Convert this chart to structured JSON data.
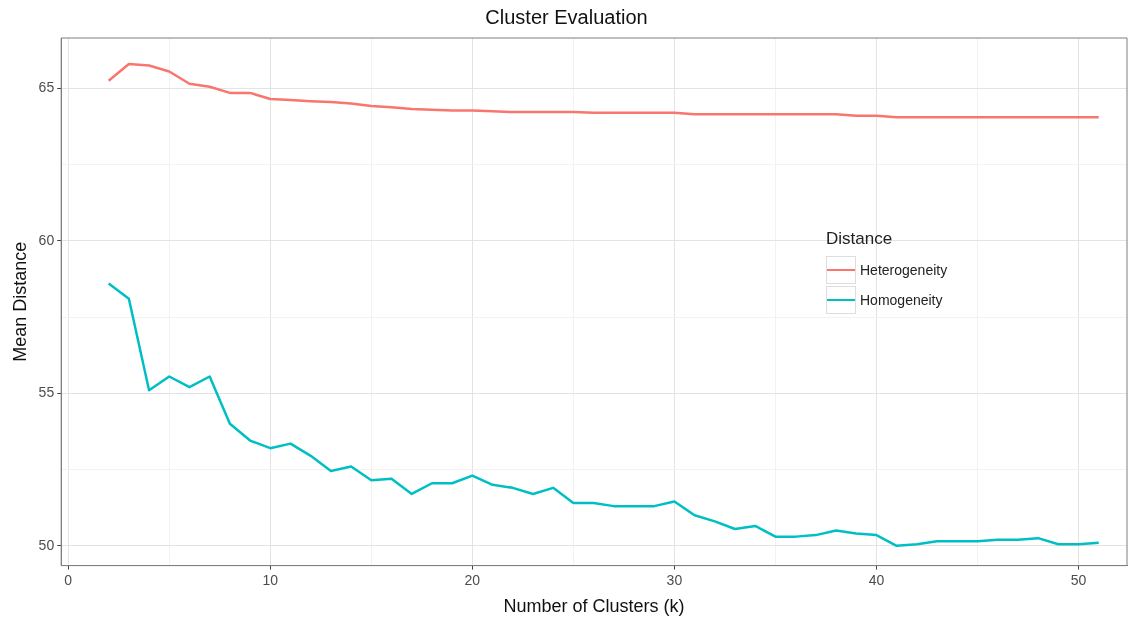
{
  "chart_data": {
    "type": "line",
    "title": "Cluster Evaluation",
    "xlabel": "Number of Clusters (k)",
    "ylabel": "Mean Distance",
    "legend_title": "Distance",
    "legend": "right",
    "x": [
      2,
      3,
      4,
      5,
      6,
      7,
      8,
      9,
      10,
      11,
      12,
      13,
      14,
      15,
      16,
      17,
      18,
      19,
      20,
      21,
      22,
      23,
      24,
      25,
      26,
      27,
      28,
      29,
      30,
      31,
      32,
      33,
      34,
      35,
      36,
      37,
      38,
      39,
      40,
      41,
      42,
      43,
      44,
      45,
      46,
      47,
      48,
      49,
      50,
      51
    ],
    "series": [
      {
        "name": "Heterogeneity",
        "color": "#f8766d",
        "values": [
          65.25,
          65.8,
          65.75,
          65.55,
          65.15,
          65.05,
          64.85,
          64.85,
          64.65,
          64.62,
          64.58,
          64.55,
          64.5,
          64.42,
          64.38,
          64.32,
          64.3,
          64.27,
          64.27,
          64.25,
          64.22,
          64.22,
          64.22,
          64.22,
          64.2,
          64.2,
          64.2,
          64.2,
          64.2,
          64.15,
          64.15,
          64.15,
          64.15,
          64.15,
          64.15,
          64.15,
          64.15,
          64.1,
          64.1,
          64.05,
          64.05,
          64.05,
          64.05,
          64.05,
          64.05,
          64.05,
          64.05,
          64.05,
          64.05,
          64.05
        ]
      },
      {
        "name": "Homogeneity",
        "color": "#00bfc4",
        "values": [
          58.6,
          58.1,
          55.1,
          55.55,
          55.2,
          55.55,
          54.0,
          53.45,
          53.2,
          53.35,
          52.95,
          52.45,
          52.6,
          52.15,
          52.2,
          51.7,
          52.05,
          52.05,
          52.3,
          52.0,
          51.9,
          51.7,
          51.9,
          51.4,
          51.4,
          51.3,
          51.3,
          51.3,
          51.45,
          51.0,
          50.8,
          50.55,
          50.65,
          50.3,
          50.3,
          50.35,
          50.5,
          50.4,
          50.35,
          50.0,
          50.05,
          50.15,
          50.15,
          50.15,
          50.2,
          50.2,
          50.25,
          50.05,
          50.05,
          50.1
        ]
      }
    ],
    "xlim": [
      -0.35,
      52.4
    ],
    "ylim": [
      49.35,
      66.65
    ],
    "xticks": [
      0,
      {
        "value": 5,
        "label": null
      },
      10,
      {
        "value": 15,
        "label": null
      },
      20,
      {
        "value": 25,
        "label": null
      },
      30,
      {
        "value": 35,
        "label": null
      },
      40,
      {
        "value": 45,
        "label": null
      },
      50
    ],
    "yticks": [
      {
        "value": 52.5,
        "label": null
      },
      {
        "value": 57.5,
        "label": null
      },
      {
        "value": 62.5,
        "label": null
      },
      50,
      55,
      60,
      65
    ],
    "grid": true,
    "marker": "none",
    "line_style": "solid"
  }
}
